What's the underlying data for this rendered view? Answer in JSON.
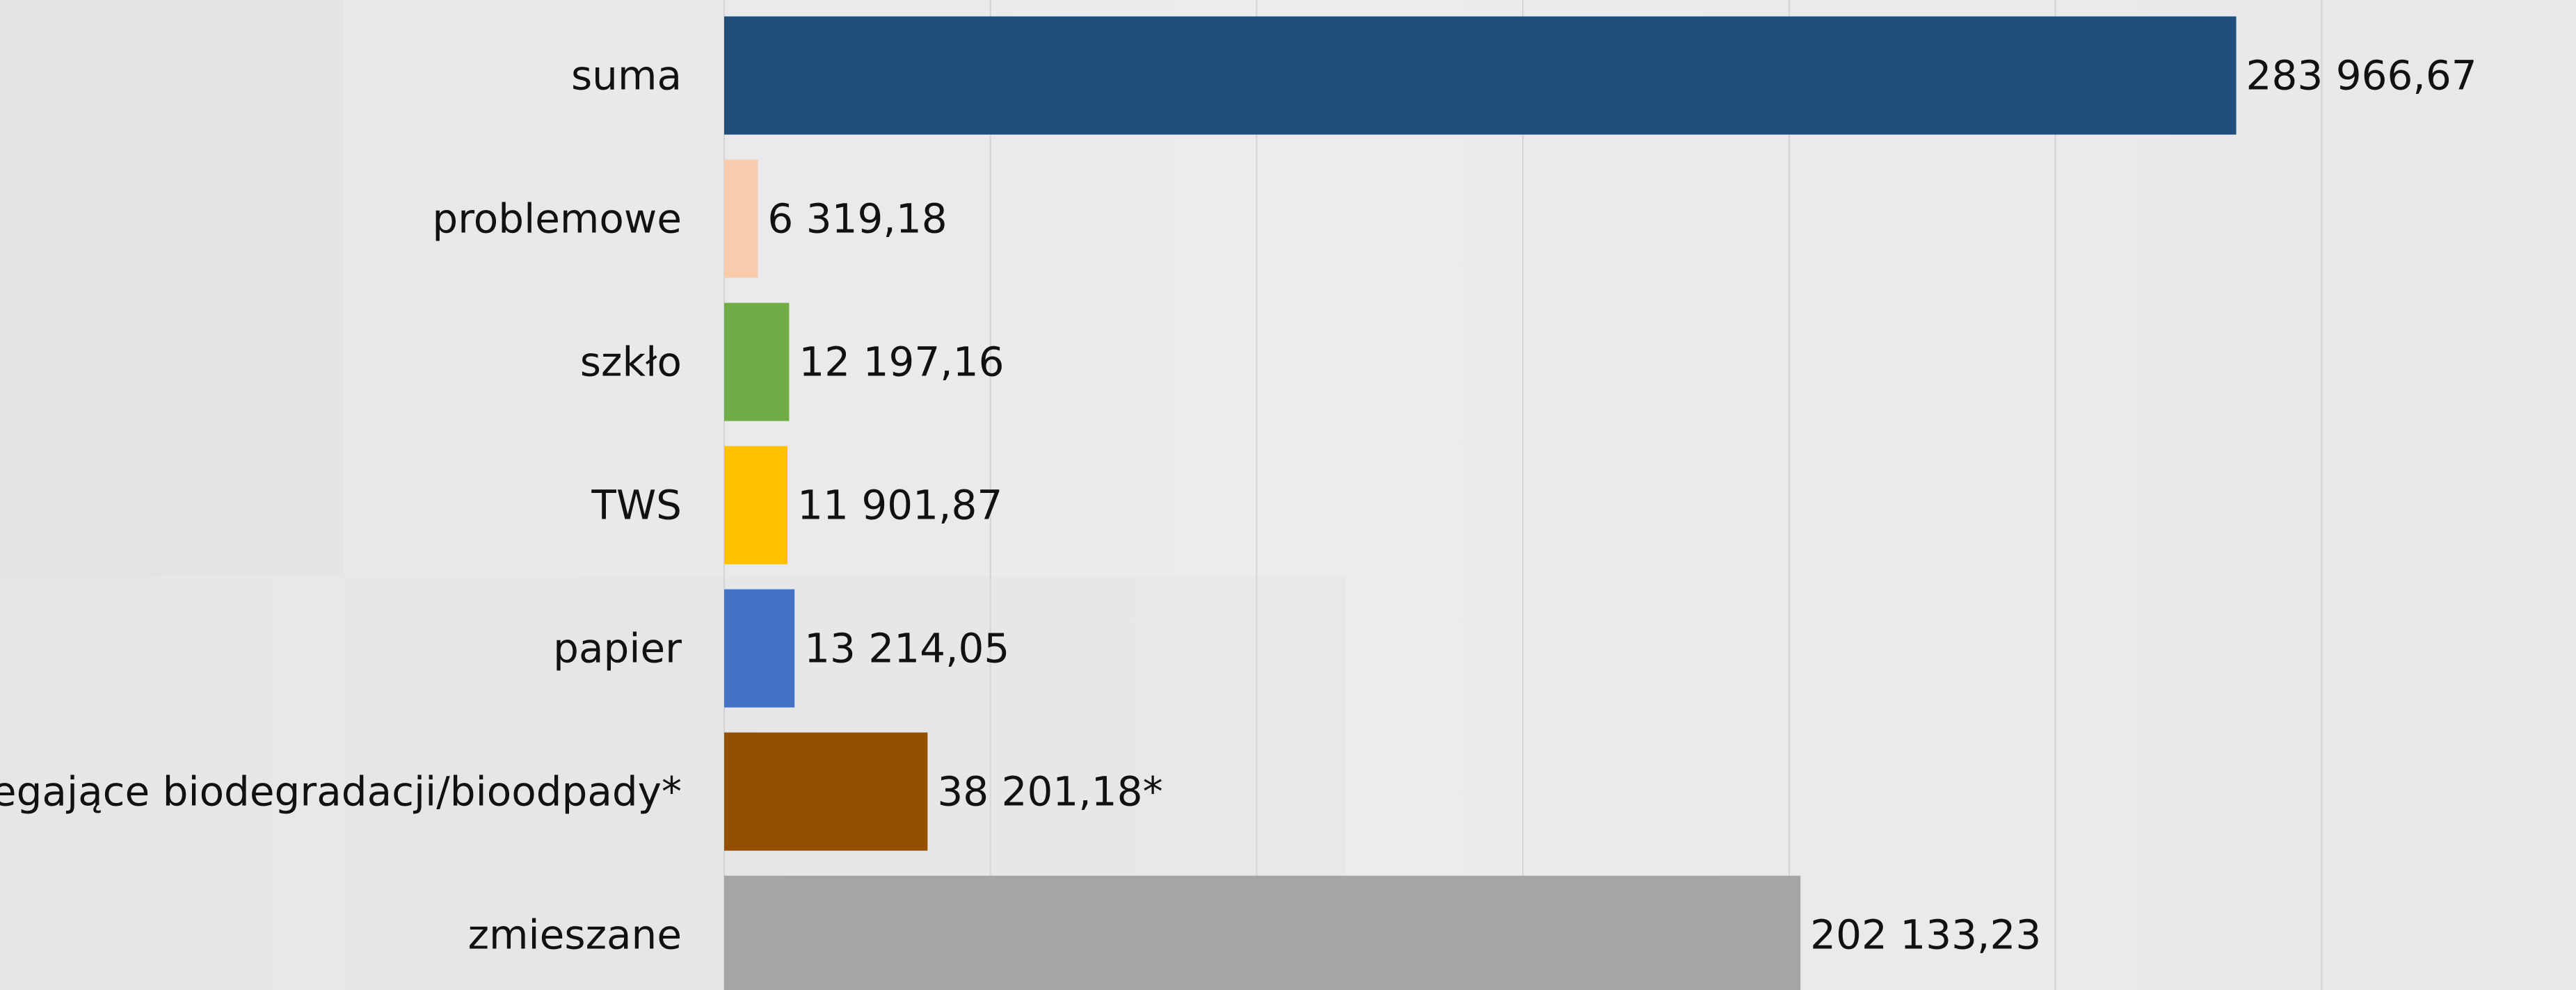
{
  "chart_data": {
    "type": "hbar",
    "categories": [
      "suma",
      "problemowe",
      "szkło",
      "TWS",
      "papier",
      "ulegające biodegradacji/bioodpady*",
      "zmieszane"
    ],
    "values": [
      283966.67,
      6319.18,
      12197.16,
      11901.87,
      13214.05,
      38201.18,
      202133.23
    ],
    "value_labels": [
      "283 966,67",
      "6 319,18",
      "12 197,16",
      "11 901,87",
      "13 214,05",
      "38 201,18*",
      "202 133,23"
    ],
    "colors": [
      "#1f4e79",
      "#f8cbad",
      "#70ad47",
      "#ffc000",
      "#4472c4",
      "#954f00",
      "#a5a5a5"
    ],
    "xlim": [
      0,
      350000
    ],
    "xticks": [
      0,
      50000,
      100000,
      150000,
      200000,
      250000,
      300000
    ],
    "grid": true
  }
}
